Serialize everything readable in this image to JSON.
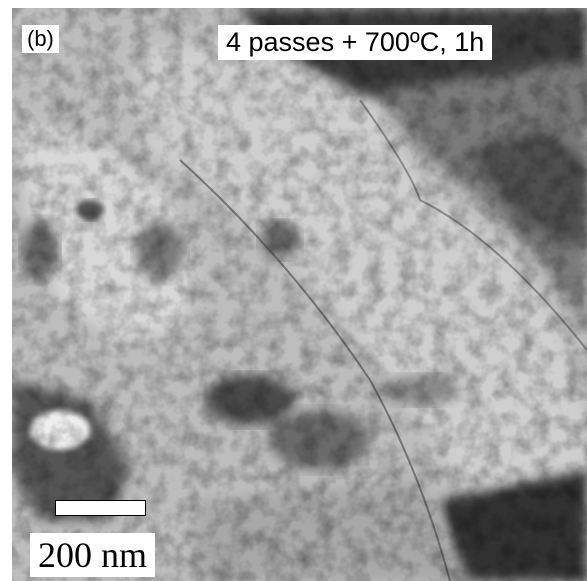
{
  "panel_label": "(b)",
  "condition": "4 passes + 700ºC, 1h",
  "scale_bar": {
    "label": "200 nm"
  }
}
